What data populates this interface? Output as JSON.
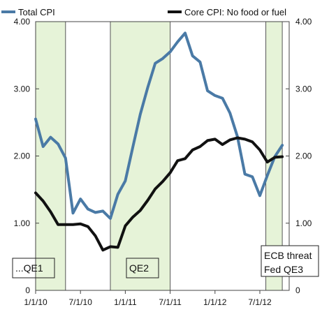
{
  "chart_data": {
    "type": "line",
    "xlabel": "",
    "ylabel": "",
    "ylim": [
      0,
      4
    ],
    "y_ticks": [
      "0",
      "1.00",
      "2.00",
      "3.00",
      "4.00"
    ],
    "y_tick_values": [
      0,
      1,
      2,
      3,
      4
    ],
    "x_ticks": [
      {
        "label": "1/1/10",
        "month": 0
      },
      {
        "label": "7/1/10",
        "month": 6
      },
      {
        "label": "1/1/11",
        "month": 12
      },
      {
        "label": "7/1/11",
        "month": 18
      },
      {
        "label": "1/1/12",
        "month": 24
      },
      {
        "label": "7/1/12",
        "month": 30
      }
    ],
    "series": [
      {
        "name": "Total CPI",
        "color": "#4a7aa6",
        "values": [
          2.55,
          2.14,
          2.28,
          2.18,
          1.97,
          1.15,
          1.36,
          1.21,
          1.16,
          1.18,
          1.07,
          1.43,
          1.63,
          2.13,
          2.62,
          3.02,
          3.38,
          3.45,
          3.55,
          3.7,
          3.83,
          3.49,
          3.4,
          2.97,
          2.9,
          2.86,
          2.64,
          2.29,
          1.73,
          1.69,
          1.41,
          1.71,
          1.99,
          2.16
        ]
      },
      {
        "name": "Core CPI: No food or fuel",
        "color": "#111111",
        "values": [
          1.45,
          1.33,
          1.17,
          0.98,
          0.98,
          0.98,
          0.99,
          0.95,
          0.81,
          0.6,
          0.65,
          0.64,
          0.96,
          1.09,
          1.19,
          1.34,
          1.51,
          1.62,
          1.75,
          1.93,
          1.96,
          2.09,
          2.14,
          2.23,
          2.25,
          2.17,
          2.24,
          2.27,
          2.25,
          2.21,
          2.09,
          1.91,
          1.98,
          1.99
        ]
      }
    ],
    "bands": [
      {
        "label": "...QE1",
        "start_month": 0,
        "end_month": 4,
        "label_lines": [
          "...QE1"
        ]
      },
      {
        "label": "QE2",
        "start_month": 10,
        "end_month": 18,
        "label_lines": [
          "QE2"
        ]
      },
      {
        "label": "ECB threat Fed QE3",
        "start_month": 30.8,
        "end_month": 33,
        "label_lines": [
          "ECB threat",
          "Fed QE3"
        ]
      }
    ],
    "band_color": "#e6f3d8",
    "legend_position": "top",
    "grid": false
  }
}
